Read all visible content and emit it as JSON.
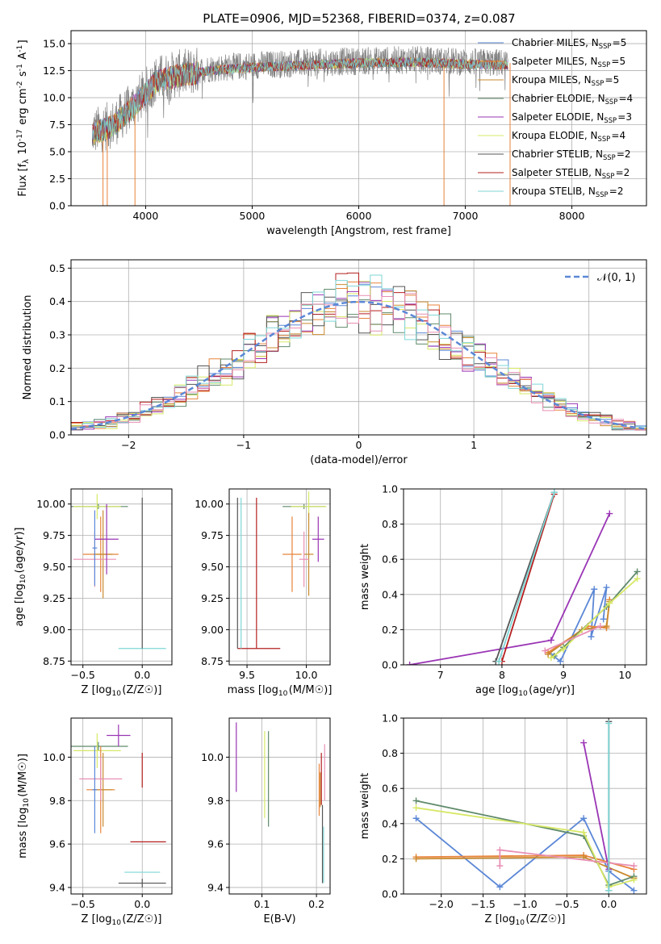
{
  "figure": {
    "title": "PLATE=0906, MJD=52368, FIBERID=0374, z=0.087"
  },
  "chart_data": [
    {
      "id": "spectrum",
      "type": "line",
      "xlabel": "wavelength [Angstrom, rest frame]",
      "ylabel": "Flux [f_λ 10^-17 erg cm^-2 s^-1 A^-1]",
      "xlim": [
        3300,
        8700
      ],
      "ylim": [
        0,
        16.2
      ],
      "xticks": [
        4000,
        5000,
        6000,
        7000,
        8000
      ],
      "yticks": [
        0.0,
        2.5,
        5.0,
        7.5,
        10.0,
        12.5,
        15.0
      ],
      "legend": "upper right",
      "series": [
        {
          "name": "Chabrier MILES, N_SSP=5",
          "color": "#5b87d6"
        },
        {
          "name": "Salpeter MILES, N_SSP=5",
          "color": "#e8833a"
        },
        {
          "name": "Kroupa MILES, N_SSP=5",
          "color": "#c98a2e"
        },
        {
          "name": "Chabrier ELODIE, N_SSP=4",
          "color": "#5f8a6a"
        },
        {
          "name": "Salpeter ELODIE, N_SSP=3",
          "color": "#9a35b5"
        },
        {
          "name": "Kroupa ELODIE, N_SSP=4",
          "color": "#d7e866"
        },
        {
          "name": "Chabrier STELIB, N_SSP=2",
          "color": "#555555"
        },
        {
          "name": "Salpeter STELIB, N_SSP=2",
          "color": "#b51f1f"
        },
        {
          "name": "Kroupa STELIB, N_SSP=2",
          "color": "#7fd6d6"
        }
      ],
      "data_spectrum_color": "#808080",
      "continuum": [
        [
          3500,
          6.8
        ],
        [
          3700,
          7.6
        ],
        [
          3900,
          9.5
        ],
        [
          4100,
          11.7
        ],
        [
          4300,
          12.2
        ],
        [
          4600,
          12.7
        ],
        [
          5000,
          13.0
        ],
        [
          5500,
          13.2
        ],
        [
          6000,
          13.4
        ],
        [
          6500,
          13.5
        ],
        [
          7000,
          13.3
        ],
        [
          7400,
          13.2
        ]
      ]
    },
    {
      "id": "residuals",
      "type": "bar",
      "xlabel": "(data-model)/error",
      "ylabel": "Normed distribution",
      "xlim": [
        -2.5,
        2.5
      ],
      "ylim": [
        0,
        0.525
      ],
      "xticks": [
        -2,
        -1,
        0,
        1,
        2
      ],
      "yticks": [
        0.0,
        0.1,
        0.2,
        0.3,
        0.4,
        0.5
      ],
      "legend": "upper right",
      "reference_label": "𝒩(0, 1)",
      "reference_color": "#5b87d6",
      "bin_width": 0.1,
      "series_colors": [
        "#5b87d6",
        "#e8833a",
        "#c98a2e",
        "#5f8a6a",
        "#9a35b5",
        "#d7e866",
        "#555555",
        "#b51f1f",
        "#7fd6d6",
        "#e88fb4"
      ]
    },
    {
      "id": "age_vs_Z",
      "type": "scatter",
      "xlabel": "Z [log10(Z/Z☉)]",
      "ylabel": "age [log10(age/yr)]",
      "xlim": [
        -0.6,
        0.25
      ],
      "ylim": [
        8.72,
        10.12
      ],
      "xticks": [
        -0.5,
        0.0
      ],
      "yticks": [
        8.75,
        9.0,
        9.25,
        9.5,
        9.75,
        10.0
      ],
      "errorbars": [
        {
          "x": -0.37,
          "y": 9.98,
          "xerr": 0.25,
          "yerr": 0.02,
          "color": "#5f8a6a"
        },
        {
          "x": -0.38,
          "y": 9.98,
          "xerr": 0.2,
          "yerr": 0.1,
          "color": "#d7e866"
        },
        {
          "x": -0.35,
          "y": 9.6,
          "xerr": 0.15,
          "yerr": 0.3,
          "color": "#e8833a"
        },
        {
          "x": -0.33,
          "y": 9.6,
          "xerr": 0.08,
          "yerr": 0.35,
          "color": "#c98a2e"
        },
        {
          "x": -0.4,
          "y": 9.56,
          "xerr": 0.18,
          "yerr": 0.22,
          "color": "#e88fb4"
        },
        {
          "x": -0.3,
          "y": 9.72,
          "xerr": 0.1,
          "yerr": 0.28,
          "color": "#9a35b5"
        },
        {
          "x": -0.4,
          "y": 9.65,
          "xerr": 0.02,
          "yerr": 0.3,
          "color": "#5b87d6"
        },
        {
          "x": 0.0,
          "y": 8.85,
          "xerr": 0.2,
          "yerr": 0.0,
          "color": "#7fd6d6"
        },
        {
          "x": 0.0,
          "y": 9.45,
          "xerr": 0.0,
          "yerr": 0.6,
          "color": "#555555"
        }
      ]
    },
    {
      "id": "age_vs_mass",
      "type": "scatter",
      "xlabel": "mass [log10(M/M☉)]",
      "ylabel": "",
      "xlim": [
        9.35,
        10.2
      ],
      "ylim": [
        8.72,
        10.12
      ],
      "xticks": [
        9.5,
        10.0
      ],
      "yticks": [
        8.75,
        9.0,
        9.25,
        9.5,
        9.75,
        10.0
      ],
      "errorbars": [
        {
          "x": 9.98,
          "y": 9.98,
          "xerr": 0.18,
          "yerr": 0.02,
          "color": "#5f8a6a"
        },
        {
          "x": 10.02,
          "y": 9.98,
          "xerr": 0.15,
          "yerr": 0.12,
          "color": "#d7e866"
        },
        {
          "x": 9.88,
          "y": 9.6,
          "xerr": 0.08,
          "yerr": 0.3,
          "color": "#e8833a"
        },
        {
          "x": 10.02,
          "y": 9.6,
          "xerr": 0.04,
          "yerr": 0.33,
          "color": "#c98a2e"
        },
        {
          "x": 9.98,
          "y": 9.56,
          "xerr": 0.04,
          "yerr": 0.22,
          "color": "#e88fb4"
        },
        {
          "x": 10.1,
          "y": 9.72,
          "xerr": 0.05,
          "yerr": 0.18,
          "color": "#9a35b5"
        },
        {
          "x": 9.6,
          "y": 8.85,
          "xerr": 0.18,
          "yerr": 0.0,
          "color": "#b51f1f"
        },
        {
          "x": 9.42,
          "y": 9.45,
          "xerr": 0.0,
          "yerr": 0.6,
          "color": "#555555"
        },
        {
          "x": 9.45,
          "y": 9.45,
          "xerr": 0.0,
          "yerr": 0.6,
          "color": "#7fd6d6"
        },
        {
          "x": 9.58,
          "y": 9.45,
          "xerr": 0.0,
          "yerr": 0.6,
          "color": "#b51f1f"
        }
      ]
    },
    {
      "id": "massweight_vs_age",
      "type": "line",
      "xlabel": "age [log10(age/yr)]",
      "ylabel": "mass weight",
      "xlim": [
        6.4,
        10.35
      ],
      "ylim": [
        0,
        1.0
      ],
      "xticks": [
        7,
        8,
        9,
        10
      ],
      "yticks": [
        0.0,
        0.2,
        0.4,
        0.6,
        0.8,
        1.0
      ],
      "series": [
        {
          "color": "#5b87d6",
          "x": [
            8.8,
            8.95,
            9.5,
            9.45,
            9.7,
            9.65
          ],
          "y": [
            0.06,
            0.02,
            0.43,
            0.16,
            0.44,
            0.26
          ]
        },
        {
          "color": "#e8833a",
          "x": [
            8.75,
            9.4,
            9.7,
            9.75
          ],
          "y": [
            0.07,
            0.22,
            0.21,
            0.37
          ]
        },
        {
          "color": "#c98a2e",
          "x": [
            8.75,
            9.3,
            9.7,
            9.75
          ],
          "y": [
            0.06,
            0.2,
            0.22,
            0.36
          ]
        },
        {
          "color": "#5f8a6a",
          "x": [
            8.85,
            9.0,
            9.7,
            10.2
          ],
          "y": [
            0.05,
            0.1,
            0.33,
            0.53
          ]
        },
        {
          "color": "#d7e866",
          "x": [
            8.8,
            9.0,
            9.75,
            10.2
          ],
          "y": [
            0.04,
            0.09,
            0.35,
            0.49
          ]
        },
        {
          "color": "#9a35b5",
          "x": [
            6.5,
            8.8,
            9.75
          ],
          "y": [
            0.0,
            0.14,
            0.86
          ]
        },
        {
          "color": "#e88fb4",
          "x": [
            8.7,
            9.6
          ],
          "y": [
            0.08,
            0.22
          ]
        },
        {
          "color": "#555555",
          "x": [
            7.9,
            8.85
          ],
          "y": [
            0.02,
            0.98
          ]
        },
        {
          "color": "#b51f1f",
          "x": [
            8.0,
            8.85
          ],
          "y": [
            0.02,
            0.97
          ]
        },
        {
          "color": "#7fd6d6",
          "x": [
            7.95,
            8.85
          ],
          "y": [
            0.02,
            0.98
          ]
        }
      ]
    },
    {
      "id": "mass_vs_Z",
      "type": "scatter",
      "xlabel": "Z [log10(Z/Z☉)]",
      "ylabel": "mass [log10(M/M☉)]",
      "xlim": [
        -0.6,
        0.25
      ],
      "ylim": [
        9.37,
        10.18
      ],
      "xticks": [
        -0.5,
        0.0
      ],
      "yticks": [
        9.4,
        9.6,
        9.8,
        10.0
      ],
      "errorbars": [
        {
          "x": -0.37,
          "y": 10.05,
          "xerr": 0.25,
          "yerr": 0.02,
          "color": "#5f8a6a"
        },
        {
          "x": -0.38,
          "y": 10.03,
          "xerr": 0.2,
          "yerr": 0.08,
          "color": "#d7e866"
        },
        {
          "x": -0.2,
          "y": 10.1,
          "xerr": 0.1,
          "yerr": 0.05,
          "color": "#9a35b5"
        },
        {
          "x": -0.35,
          "y": 9.85,
          "xerr": 0.12,
          "yerr": 0.2,
          "color": "#e8833a"
        },
        {
          "x": -0.33,
          "y": 9.85,
          "xerr": 0.08,
          "yerr": 0.17,
          "color": "#c98a2e"
        },
        {
          "x": -0.35,
          "y": 9.9,
          "xerr": 0.18,
          "yerr": 0.1,
          "color": "#e88fb4"
        },
        {
          "x": -0.4,
          "y": 9.85,
          "xerr": 0.02,
          "yerr": 0.2,
          "color": "#5b87d6"
        },
        {
          "x": 0.0,
          "y": 9.94,
          "xerr": 0.0,
          "yerr": 0.08,
          "color": "#b51f1f"
        },
        {
          "x": 0.05,
          "y": 9.61,
          "xerr": 0.15,
          "yerr": 0.0,
          "color": "#b51f1f"
        },
        {
          "x": 0.0,
          "y": 9.47,
          "xerr": 0.15,
          "yerr": 0.0,
          "color": "#7fd6d6"
        },
        {
          "x": 0.0,
          "y": 9.42,
          "xerr": 0.2,
          "yerr": 0.02,
          "color": "#555555"
        }
      ]
    },
    {
      "id": "mass_vs_EBV",
      "type": "scatter",
      "xlabel": "E(B-V)",
      "ylabel": "",
      "xlim": [
        0.04,
        0.225
      ],
      "ylim": [
        9.37,
        10.18
      ],
      "xticks": [
        0.1,
        0.2
      ],
      "yticks": [
        9.4,
        9.6,
        9.8,
        10.0
      ],
      "errorbars": [
        {
          "x": 0.053,
          "y": 10.0,
          "xerr": 0.0,
          "yerr": 0.16,
          "color": "#9a35b5"
        },
        {
          "x": 0.105,
          "y": 9.92,
          "xerr": 0.0,
          "yerr": 0.2,
          "color": "#d7e866"
        },
        {
          "x": 0.112,
          "y": 9.9,
          "xerr": 0.0,
          "yerr": 0.22,
          "color": "#5f8a6a"
        },
        {
          "x": 0.205,
          "y": 9.85,
          "xerr": 0.0,
          "yerr": 0.12,
          "color": "#e8833a"
        },
        {
          "x": 0.207,
          "y": 9.85,
          "xerr": 0.0,
          "yerr": 0.08,
          "color": "#c98a2e"
        },
        {
          "x": 0.209,
          "y": 9.9,
          "xerr": 0.0,
          "yerr": 0.12,
          "color": "#b51f1f"
        },
        {
          "x": 0.211,
          "y": 9.6,
          "xerr": 0.0,
          "yerr": 0.18,
          "color": "#555555"
        },
        {
          "x": 0.213,
          "y": 9.55,
          "xerr": 0.0,
          "yerr": 0.13,
          "color": "#7fd6d6"
        },
        {
          "x": 0.215,
          "y": 9.93,
          "xerr": 0.0,
          "yerr": 0.13,
          "color": "#e88fb4"
        }
      ]
    },
    {
      "id": "massweight_vs_Z",
      "type": "line",
      "xlabel": "Z [log10(Z/Z☉)]",
      "ylabel": "mass weight",
      "xlim": [
        -2.45,
        0.45
      ],
      "ylim": [
        0,
        1.0
      ],
      "xticks": [
        -2.0,
        -1.5,
        -1.0,
        -0.5,
        0.0
      ],
      "yticks": [
        0.0,
        0.2,
        0.4,
        0.6,
        0.8,
        1.0
      ],
      "series": [
        {
          "color": "#5b87d6",
          "x": [
            -2.3,
            -1.3,
            -0.3,
            0.0,
            0.3
          ],
          "y": [
            0.43,
            0.04,
            0.43,
            0.13,
            0.02
          ]
        },
        {
          "color": "#e8833a",
          "x": [
            -2.3,
            -0.3,
            0.3
          ],
          "y": [
            0.21,
            0.22,
            0.14
          ]
        },
        {
          "color": "#c98a2e",
          "x": [
            -2.3,
            -0.3,
            0.3
          ],
          "y": [
            0.2,
            0.21,
            0.09
          ]
        },
        {
          "color": "#5f8a6a",
          "x": [
            -2.3,
            -0.3,
            0.0,
            0.3
          ],
          "y": [
            0.53,
            0.33,
            0.05,
            0.1
          ]
        },
        {
          "color": "#d7e866",
          "x": [
            -2.3,
            -0.3,
            0.0,
            0.3
          ],
          "y": [
            0.49,
            0.35,
            0.04,
            0.08
          ]
        },
        {
          "color": "#9a35b5",
          "x": [
            -0.3,
            0.0
          ],
          "y": [
            0.86,
            0.14
          ]
        },
        {
          "color": "#e88fb4",
          "x": [
            -1.3,
            -1.3,
            0.3
          ],
          "y": [
            0.16,
            0.25,
            0.16
          ]
        },
        {
          "color": "#555555",
          "x": [
            0.0,
            0.0
          ],
          "y": [
            0.98,
            0.02
          ]
        },
        {
          "color": "#7fd6d6",
          "x": [
            0.0,
            0.0
          ],
          "y": [
            0.97,
            0.02
          ]
        }
      ]
    }
  ]
}
